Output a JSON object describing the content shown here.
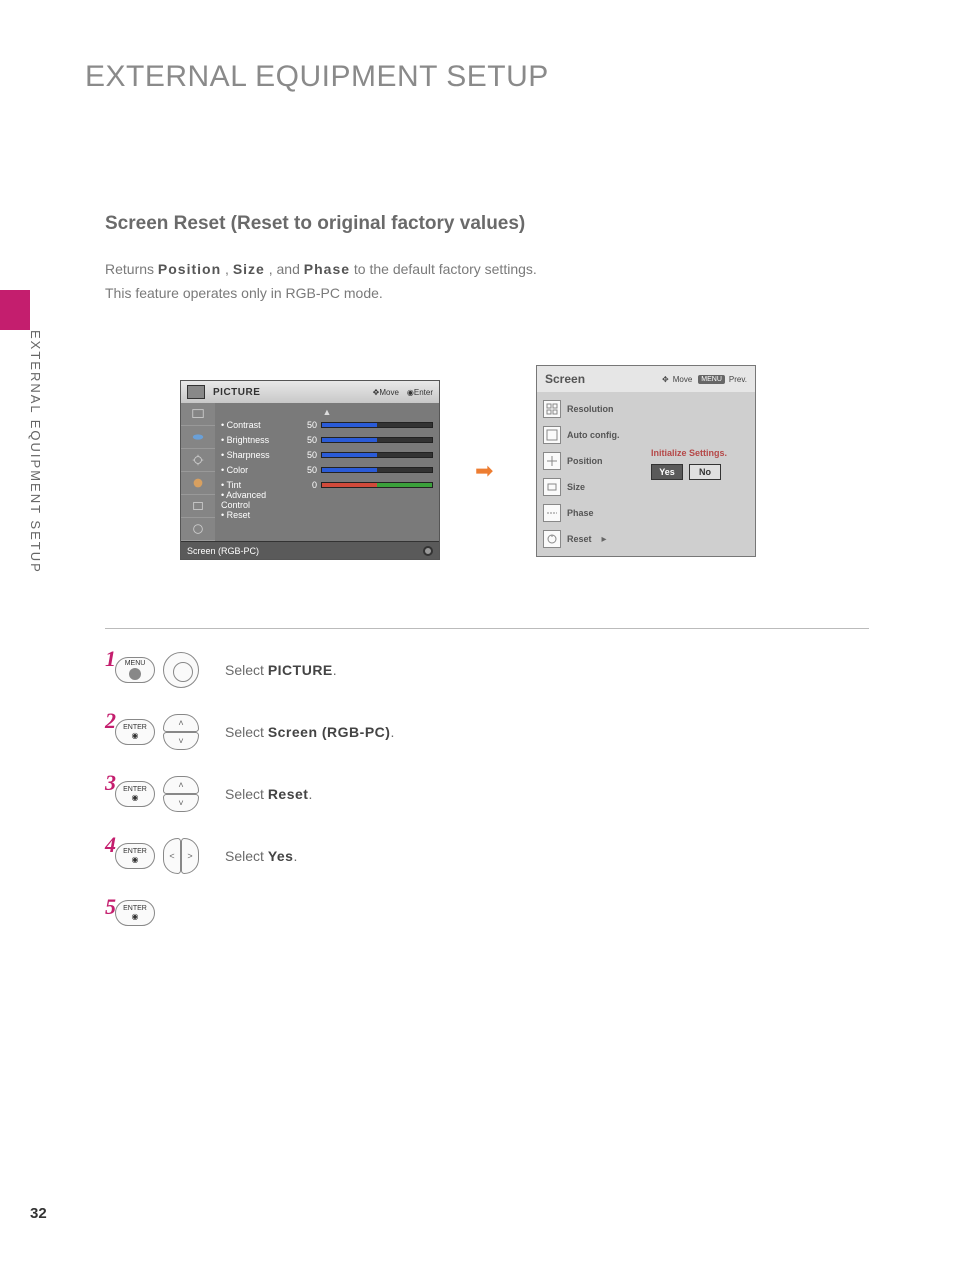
{
  "page": {
    "title": "EXTERNAL EQUIPMENT SETUP",
    "vertical_label": "EXTERNAL EQUIPMENT SETUP",
    "number": "32"
  },
  "section": {
    "heading": "Screen Reset (Reset to original factory values)",
    "desc_prefix": "Returns ",
    "desc_kw1": "Position",
    "desc_sep1": ", ",
    "desc_kw2": "Size",
    "desc_sep2": ", and ",
    "desc_kw3": "Phase",
    "desc_suffix": " to the default factory settings.",
    "desc_line2": "This feature operates only in RGB-PC mode."
  },
  "picture_panel": {
    "title": "PICTURE",
    "hint_move": "Move",
    "hint_enter": "Enter",
    "rows": [
      {
        "label": "• Contrast",
        "value": "50",
        "fill_pct": 50,
        "fill_color": "#2a5bd7",
        "bg": "#333"
      },
      {
        "label": "• Brightness",
        "value": "50",
        "fill_pct": 50,
        "fill_color": "#2a5bd7",
        "bg": "#333"
      },
      {
        "label": "• Sharpness",
        "value": "50",
        "fill_pct": 50,
        "fill_color": "#2a5bd7",
        "bg": "#333"
      },
      {
        "label": "• Color",
        "value": "50",
        "fill_pct": 50,
        "fill_color": "#2a5bd7",
        "bg": "#333"
      },
      {
        "label": "• Tint",
        "value": "0",
        "fill_pct": 50,
        "fill_color": "#d04a3a",
        "bg": "#3aa03a"
      }
    ],
    "adv_label": "• Advanced Control",
    "reset_label": "• Reset",
    "screen_row": "Screen (RGB-PC)"
  },
  "screen_panel": {
    "title": "Screen",
    "hint_move": "Move",
    "hint_menu": "MENU",
    "hint_prev": "Prev.",
    "items": [
      "Resolution",
      "Auto config.",
      "Position",
      "Size",
      "Phase",
      "Reset"
    ],
    "init_text": "Initialize Settings.",
    "yes": "Yes",
    "no": "No"
  },
  "steps": [
    {
      "num": "1",
      "btn": "MENU",
      "pad": "full",
      "pre": "Select ",
      "kw": "PICTURE",
      "post": "."
    },
    {
      "num": "2",
      "btn": "ENTER",
      "pad": "ud",
      "pre": "Select ",
      "kw": "Screen (RGB-PC)",
      "post": "."
    },
    {
      "num": "3",
      "btn": "ENTER",
      "pad": "ud",
      "pre": "Select ",
      "kw": "Reset",
      "post": "."
    },
    {
      "num": "4",
      "btn": "ENTER",
      "pad": "lr",
      "pre": "Select ",
      "kw": "Yes",
      "post": "."
    },
    {
      "num": "5",
      "btn": "ENTER",
      "pad": "",
      "pre": "",
      "kw": "",
      "post": ""
    }
  ],
  "colors": {
    "accent": "#c41e6e",
    "arrow": "#ed7d31"
  }
}
